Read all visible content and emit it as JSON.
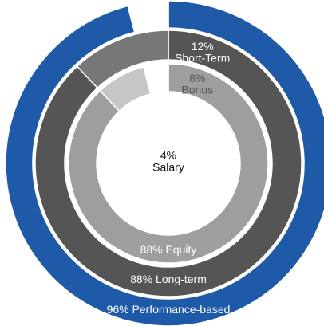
{
  "chart_data": {
    "type": "pie",
    "rings": [
      {
        "name": "outer",
        "segments": [
          {
            "label": "96% Performance-based",
            "value": 96,
            "color": "#1f5aa8",
            "text_color": "#ffffff"
          },
          {
            "label": "",
            "value": 4,
            "color": "#ffffff",
            "text_color": "#ffffff"
          }
        ]
      },
      {
        "name": "second",
        "segments": [
          {
            "label": "88% Long-term",
            "value": 88,
            "color": "#555555",
            "text_color": "#ffffff"
          },
          {
            "label": "12%\nShort-Term",
            "value": 12,
            "color": "#777777",
            "text_color": "#ffffff"
          }
        ]
      },
      {
        "name": "third",
        "segments": [
          {
            "label": "88% Equity",
            "value": 88,
            "color": "#9e9e9e",
            "text_color": "#ffffff"
          },
          {
            "label": "8%\nBonus",
            "value": 8,
            "color": "#c6c6c6",
            "text_color": "#555555"
          },
          {
            "label": "4%\nSalary",
            "value": 4,
            "color": "#ffffff",
            "text_color": "#111111"
          }
        ]
      }
    ]
  }
}
